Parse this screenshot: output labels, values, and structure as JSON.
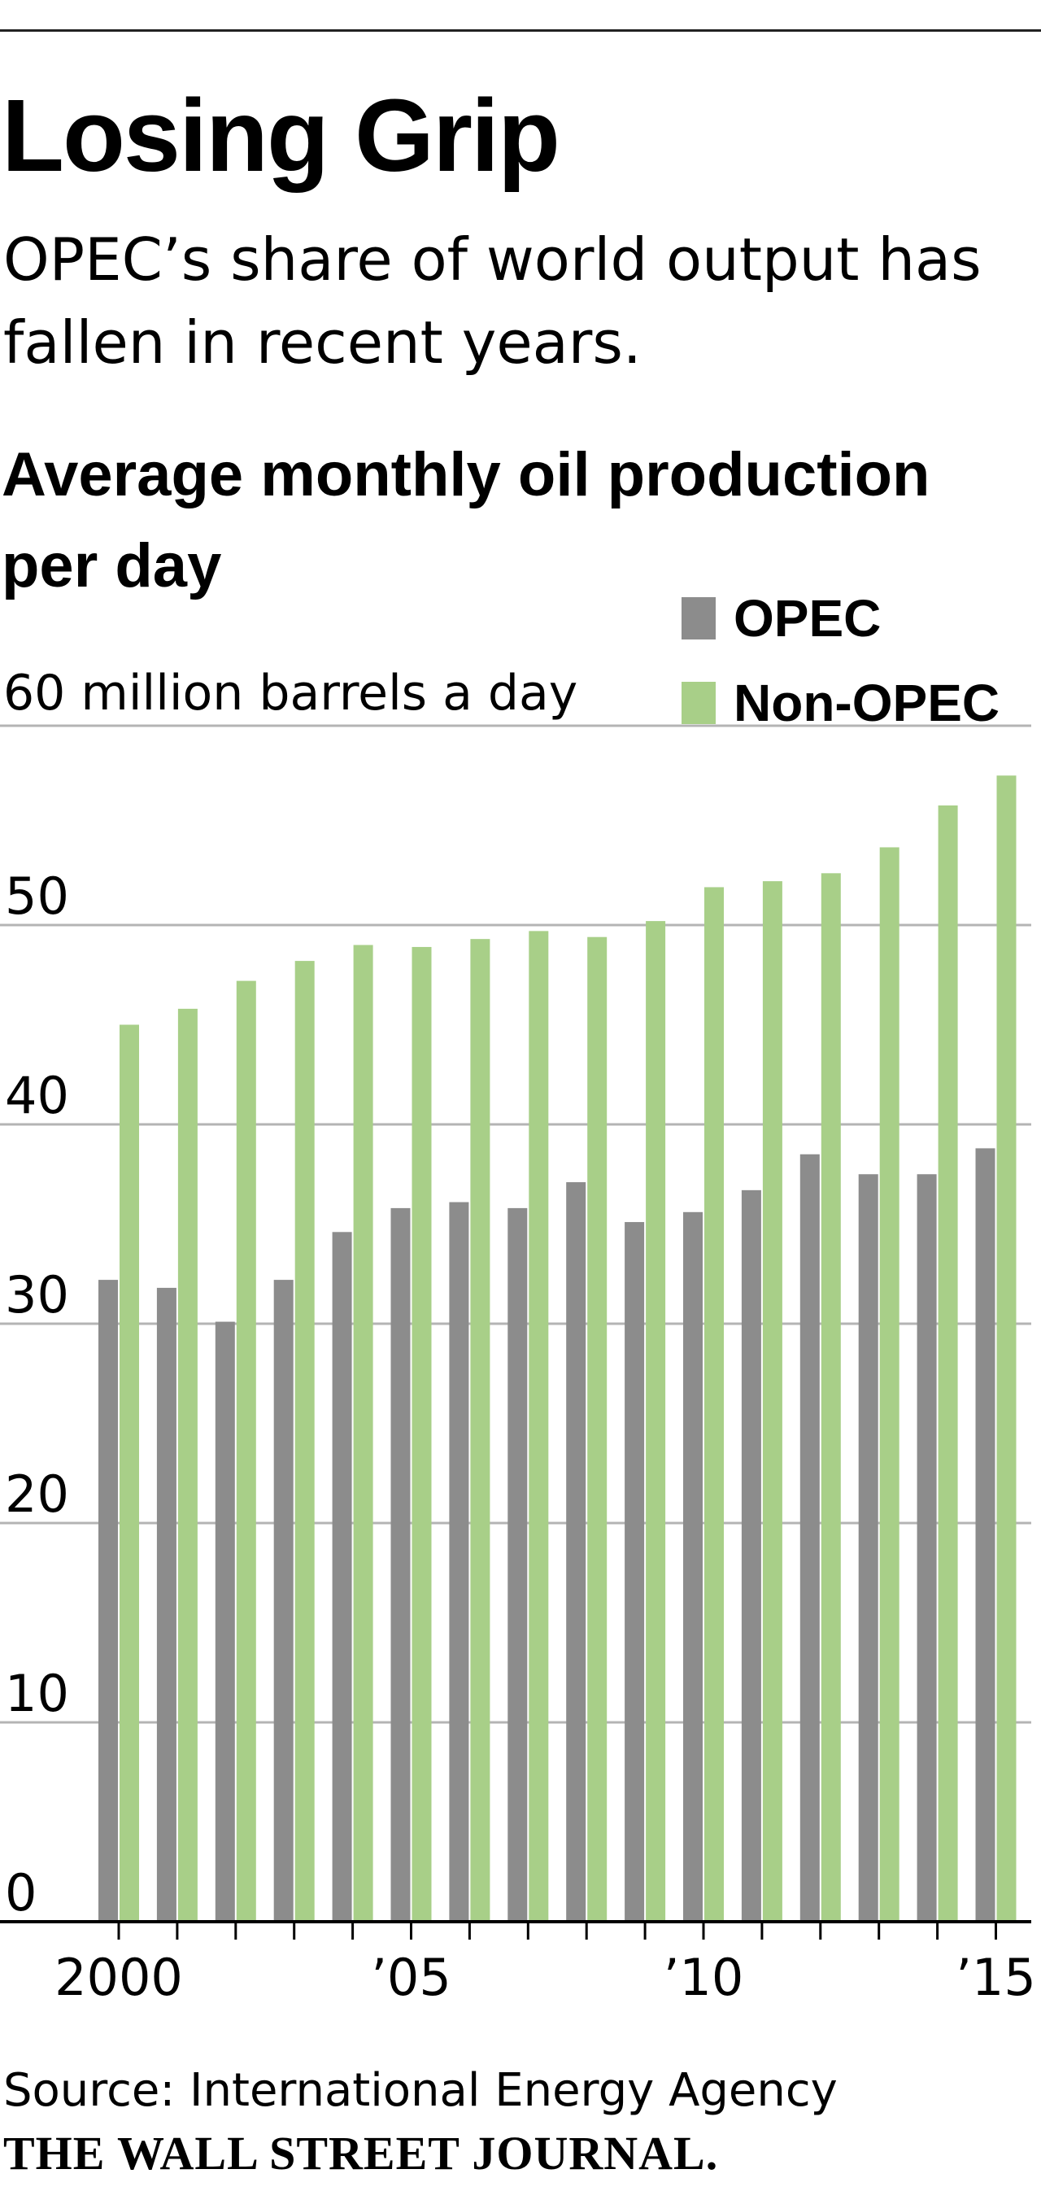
{
  "header": {
    "title": "Losing Grip",
    "subtitle": "OPEC’s share of world output has fallen in recent years."
  },
  "chart_data": {
    "type": "bar",
    "title": "Average monthly oil production per day",
    "unit_label": "60 million barrels a day",
    "xlabel": "",
    "ylabel": "",
    "ylim": [
      0,
      60
    ],
    "yticks": [
      0,
      10,
      20,
      30,
      40,
      50
    ],
    "x": [
      2000,
      2001,
      2002,
      2003,
      2004,
      2005,
      2006,
      2007,
      2008,
      2009,
      2010,
      2011,
      2012,
      2013,
      2014,
      2015
    ],
    "x_tick_labels": [
      {
        "year": 2000,
        "label": "2000"
      },
      {
        "year": 2005,
        "label": "’05"
      },
      {
        "year": 2010,
        "label": "’10"
      },
      {
        "year": 2015,
        "label": "’15"
      }
    ],
    "grid": true,
    "legend_position": "top-right",
    "series": [
      {
        "name": "OPEC",
        "color": "#8c8c8c",
        "values": [
          32.2,
          31.8,
          30.1,
          32.2,
          34.6,
          35.8,
          36.1,
          35.8,
          37.1,
          35.1,
          35.6,
          36.7,
          38.5,
          37.5,
          37.5,
          38.8
        ]
      },
      {
        "name": "Non-OPEC",
        "color": "#a8cf88",
        "values": [
          45.0,
          45.8,
          47.2,
          48.2,
          49.0,
          48.9,
          49.3,
          49.7,
          49.4,
          50.2,
          51.9,
          52.2,
          52.6,
          53.9,
          56.0,
          57.5
        ]
      }
    ]
  },
  "footer": {
    "source": "Source: International Energy Agency",
    "credit": "THE WALL STREET JOURNAL."
  }
}
